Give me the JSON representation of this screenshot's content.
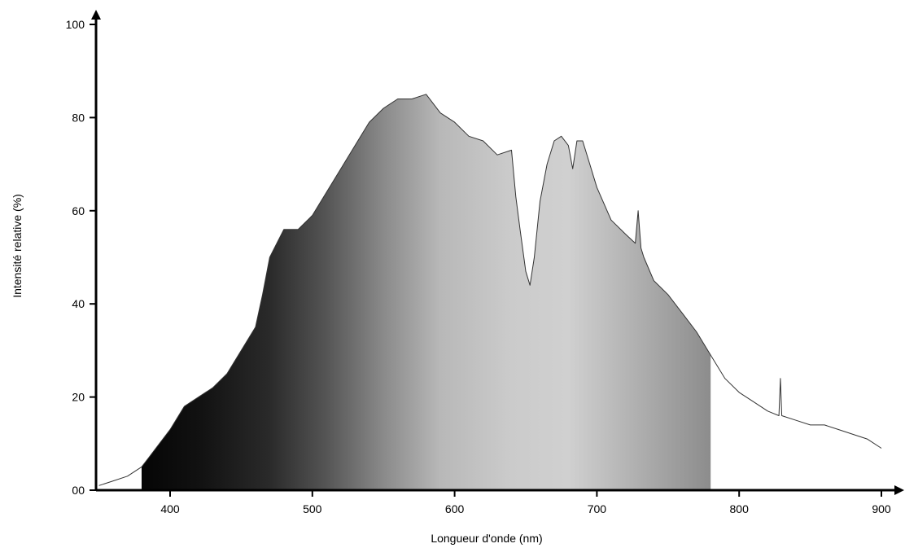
{
  "chart_data": {
    "type": "area",
    "title": "",
    "xlabel": "Longueur d'onde (nm)",
    "ylabel": "Intensité relative (%)",
    "xlim": [
      350,
      905
    ],
    "ylim": [
      0,
      100
    ],
    "x_ticks": [
      400,
      500,
      600,
      700,
      800,
      900
    ],
    "x_tick_labels": [
      "400",
      "500",
      "600",
      "700",
      "800",
      "900"
    ],
    "y_ticks": [
      0,
      20,
      40,
      60,
      80,
      100
    ],
    "y_tick_labels": [
      "00",
      "20",
      "40",
      "60",
      "80",
      "100"
    ],
    "grid": false,
    "legend": "none",
    "fill_range": [
      380,
      780
    ],
    "fill_gradient": [
      {
        "x": 380,
        "color": "#050505"
      },
      {
        "x": 420,
        "color": "#111111"
      },
      {
        "x": 470,
        "color": "#2a2a2a"
      },
      {
        "x": 510,
        "color": "#555555"
      },
      {
        "x": 550,
        "color": "#8a8a8a"
      },
      {
        "x": 590,
        "color": "#b8b8b8"
      },
      {
        "x": 640,
        "color": "#cbcbcb"
      },
      {
        "x": 680,
        "color": "#d0d0d0"
      },
      {
        "x": 720,
        "color": "#b5b5b5"
      },
      {
        "x": 760,
        "color": "#9a9a9a"
      },
      {
        "x": 780,
        "color": "#8c8c8c"
      }
    ],
    "series": [
      {
        "x": [
          350,
          360,
          370,
          380,
          385,
          390,
          400,
          410,
          420,
          430,
          440,
          450,
          460,
          465,
          470,
          475,
          480,
          490,
          500,
          510,
          520,
          530,
          540,
          550,
          560,
          570,
          580,
          590,
          600,
          610,
          620,
          630,
          640,
          643,
          646,
          650,
          653,
          656,
          660,
          665,
          670,
          675,
          680,
          683,
          686,
          690,
          695,
          700,
          710,
          720,
          727,
          729,
          731,
          733,
          740,
          750,
          760,
          770,
          780,
          790,
          800,
          810,
          820,
          828,
          829,
          830,
          840,
          850,
          860,
          870,
          880,
          890,
          900
        ],
        "values": [
          1,
          2,
          3,
          5,
          7,
          9,
          13,
          18,
          20,
          22,
          25,
          30,
          35,
          42,
          50,
          53,
          56,
          56,
          59,
          64,
          69,
          74,
          79,
          82,
          84,
          84,
          85,
          81,
          79,
          76,
          75,
          72,
          73,
          63,
          56,
          47,
          44,
          50,
          62,
          70,
          75,
          76,
          74,
          69,
          75,
          75,
          70,
          65,
          58,
          55,
          53,
          60,
          52,
          50,
          45,
          42,
          38,
          34,
          29,
          24,
          21,
          19,
          17,
          16,
          24,
          16,
          15,
          14,
          14,
          13,
          12,
          11,
          9
        ]
      }
    ]
  }
}
